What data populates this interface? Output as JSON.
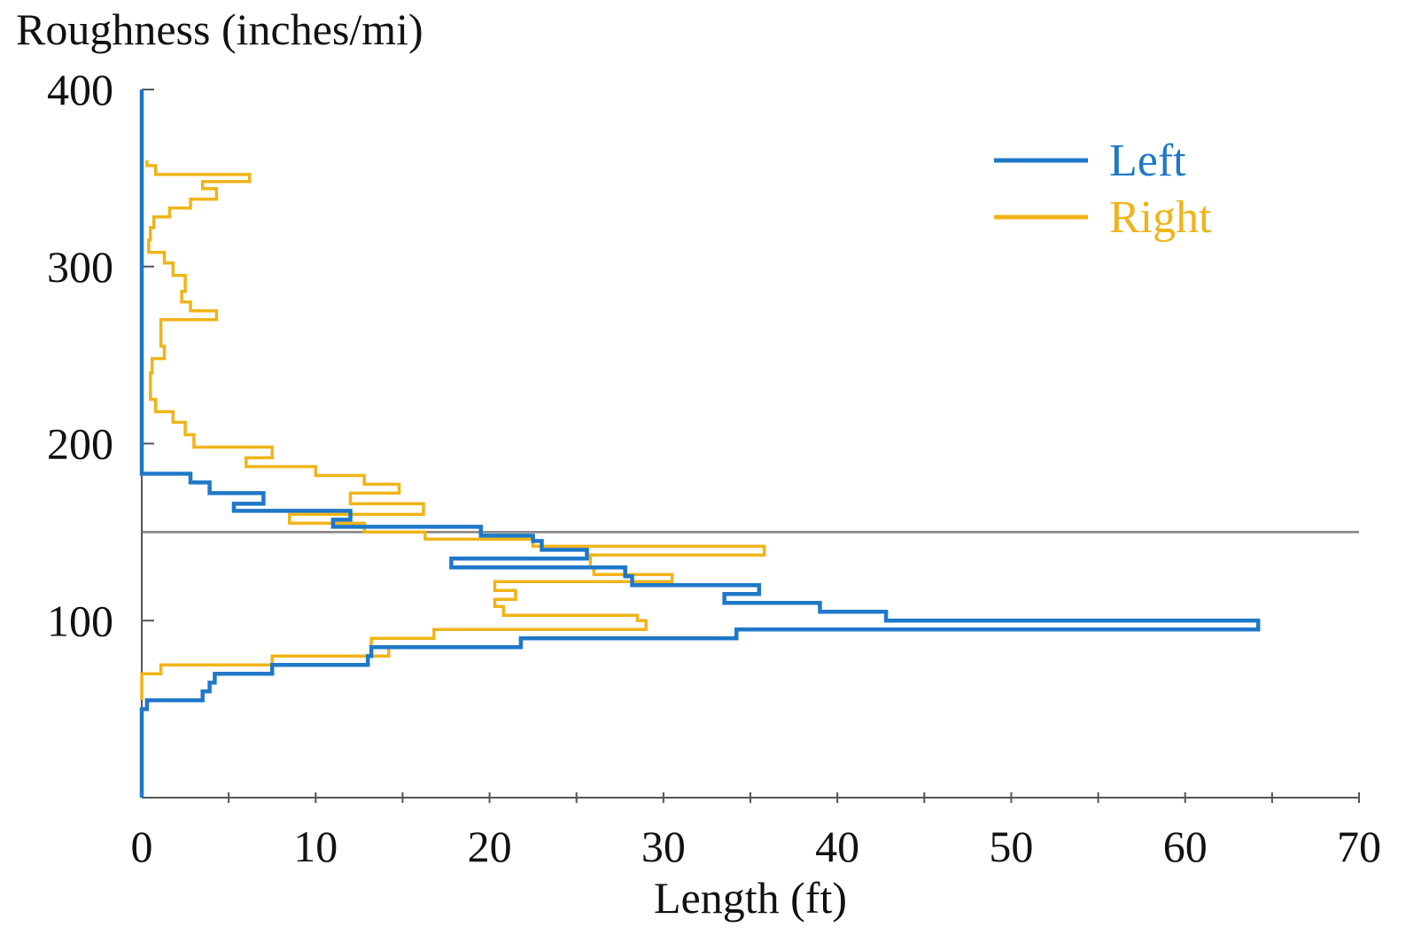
{
  "chart_data": {
    "type": "line",
    "ylabel": "Roughness (inches/mi)",
    "xlabel": "Length (ft)",
    "xlim": [
      0,
      70
    ],
    "ylim": [
      0,
      400
    ],
    "x_ticks": [
      0,
      10,
      20,
      30,
      40,
      50,
      60,
      70
    ],
    "y_ticks": [
      100,
      200,
      300,
      400
    ],
    "x_tick_labels": [
      "0",
      "10",
      "20",
      "30",
      "40",
      "50",
      "60",
      "70"
    ],
    "y_tick_labels": [
      "100",
      "200",
      "300",
      "400"
    ],
    "reference_line": {
      "y": 150,
      "color": "#808080"
    },
    "legend": {
      "position": "top-right"
    },
    "series": [
      {
        "name": "Left",
        "color": "#1f78c8",
        "points": [
          [
            0,
            0
          ],
          [
            0,
            50
          ],
          [
            0.3,
            50
          ],
          [
            0.3,
            55
          ],
          [
            3.5,
            55
          ],
          [
            3.5,
            60
          ],
          [
            3.9,
            60
          ],
          [
            3.9,
            65
          ],
          [
            4.2,
            65
          ],
          [
            4.2,
            70
          ],
          [
            7.5,
            70
          ],
          [
            7.5,
            75
          ],
          [
            13.0,
            75
          ],
          [
            13.0,
            80
          ],
          [
            13.2,
            80
          ],
          [
            13.2,
            85
          ],
          [
            21.8,
            85
          ],
          [
            21.8,
            90
          ],
          [
            34.2,
            90
          ],
          [
            34.2,
            95
          ],
          [
            64.2,
            95
          ],
          [
            64.2,
            100
          ],
          [
            42.8,
            100
          ],
          [
            42.8,
            105
          ],
          [
            39.0,
            105
          ],
          [
            39.0,
            110
          ],
          [
            33.5,
            110
          ],
          [
            33.5,
            115
          ],
          [
            35.5,
            115
          ],
          [
            35.5,
            120
          ],
          [
            28.2,
            120
          ],
          [
            28.2,
            125
          ],
          [
            27.8,
            125
          ],
          [
            27.8,
            130
          ],
          [
            17.8,
            130
          ],
          [
            17.8,
            135
          ],
          [
            25.6,
            135
          ],
          [
            25.6,
            140
          ],
          [
            23.0,
            140
          ],
          [
            23.0,
            145
          ],
          [
            22.5,
            145
          ],
          [
            22.5,
            148
          ],
          [
            19.5,
            148
          ],
          [
            19.5,
            153
          ],
          [
            11.0,
            153
          ],
          [
            11.0,
            157
          ],
          [
            12.0,
            157
          ],
          [
            12.0,
            162
          ],
          [
            5.3,
            162
          ],
          [
            5.3,
            166
          ],
          [
            7.0,
            166
          ],
          [
            7.0,
            172
          ],
          [
            3.9,
            172
          ],
          [
            3.9,
            178
          ],
          [
            2.8,
            178
          ],
          [
            2.8,
            183
          ],
          [
            0,
            183
          ],
          [
            0,
            400
          ]
        ]
      },
      {
        "name": "Right",
        "color": "#f0b418",
        "points": [
          [
            0,
            55
          ],
          [
            0,
            70
          ],
          [
            1.1,
            70
          ],
          [
            1.1,
            75
          ],
          [
            7.5,
            75
          ],
          [
            7.5,
            80
          ],
          [
            14.2,
            80
          ],
          [
            14.2,
            85
          ],
          [
            13.2,
            85
          ],
          [
            13.2,
            90
          ],
          [
            16.8,
            90
          ],
          [
            16.8,
            95
          ],
          [
            29.0,
            95
          ],
          [
            29.0,
            100
          ],
          [
            28.5,
            100
          ],
          [
            28.5,
            103
          ],
          [
            20.8,
            103
          ],
          [
            20.8,
            108
          ],
          [
            20.3,
            108
          ],
          [
            20.3,
            112
          ],
          [
            21.5,
            112
          ],
          [
            21.5,
            117
          ],
          [
            20.3,
            117
          ],
          [
            20.3,
            122
          ],
          [
            30.5,
            122
          ],
          [
            30.5,
            126
          ],
          [
            26.0,
            126
          ],
          [
            26.0,
            130
          ],
          [
            25.8,
            130
          ],
          [
            25.8,
            137
          ],
          [
            35.8,
            137
          ],
          [
            35.8,
            142
          ],
          [
            22.5,
            142
          ],
          [
            22.5,
            146
          ],
          [
            16.3,
            146
          ],
          [
            16.3,
            150
          ],
          [
            12.8,
            150
          ],
          [
            12.8,
            155
          ],
          [
            8.5,
            155
          ],
          [
            8.5,
            160
          ],
          [
            16.2,
            160
          ],
          [
            16.2,
            166
          ],
          [
            12.0,
            166
          ],
          [
            12.0,
            172
          ],
          [
            14.8,
            172
          ],
          [
            14.8,
            177
          ],
          [
            12.8,
            177
          ],
          [
            12.8,
            182
          ],
          [
            10.0,
            182
          ],
          [
            10.0,
            187
          ],
          [
            6.0,
            187
          ],
          [
            6.0,
            192
          ],
          [
            7.5,
            192
          ],
          [
            7.5,
            198
          ],
          [
            3.0,
            198
          ],
          [
            3.0,
            205
          ],
          [
            2.5,
            205
          ],
          [
            2.5,
            212
          ],
          [
            1.8,
            212
          ],
          [
            1.8,
            218
          ],
          [
            0.8,
            218
          ],
          [
            0.8,
            225
          ],
          [
            0.5,
            225
          ],
          [
            0.5,
            232
          ],
          [
            0.5,
            240
          ],
          [
            0.6,
            240
          ],
          [
            0.6,
            248
          ],
          [
            1.3,
            248
          ],
          [
            1.3,
            255
          ],
          [
            1.1,
            255
          ],
          [
            1.1,
            262
          ],
          [
            1.1,
            270
          ],
          [
            4.3,
            270
          ],
          [
            4.3,
            275
          ],
          [
            2.8,
            275
          ],
          [
            2.8,
            280
          ],
          [
            2.3,
            280
          ],
          [
            2.3,
            286
          ],
          [
            2.5,
            286
          ],
          [
            2.5,
            295
          ],
          [
            1.8,
            295
          ],
          [
            1.8,
            302
          ],
          [
            1.3,
            302
          ],
          [
            1.3,
            308
          ],
          [
            0.4,
            308
          ],
          [
            0.4,
            315
          ],
          [
            0.5,
            315
          ],
          [
            0.5,
            322
          ],
          [
            0.7,
            322
          ],
          [
            0.7,
            328
          ],
          [
            1.6,
            328
          ],
          [
            1.6,
            333
          ],
          [
            2.8,
            333
          ],
          [
            2.8,
            338
          ],
          [
            4.3,
            338
          ],
          [
            4.3,
            344
          ],
          [
            3.5,
            344
          ],
          [
            3.5,
            348
          ],
          [
            6.2,
            348
          ],
          [
            6.2,
            352
          ],
          [
            0.8,
            352
          ],
          [
            0.8,
            357
          ],
          [
            0.3,
            357
          ],
          [
            0.3,
            360
          ]
        ]
      }
    ]
  }
}
